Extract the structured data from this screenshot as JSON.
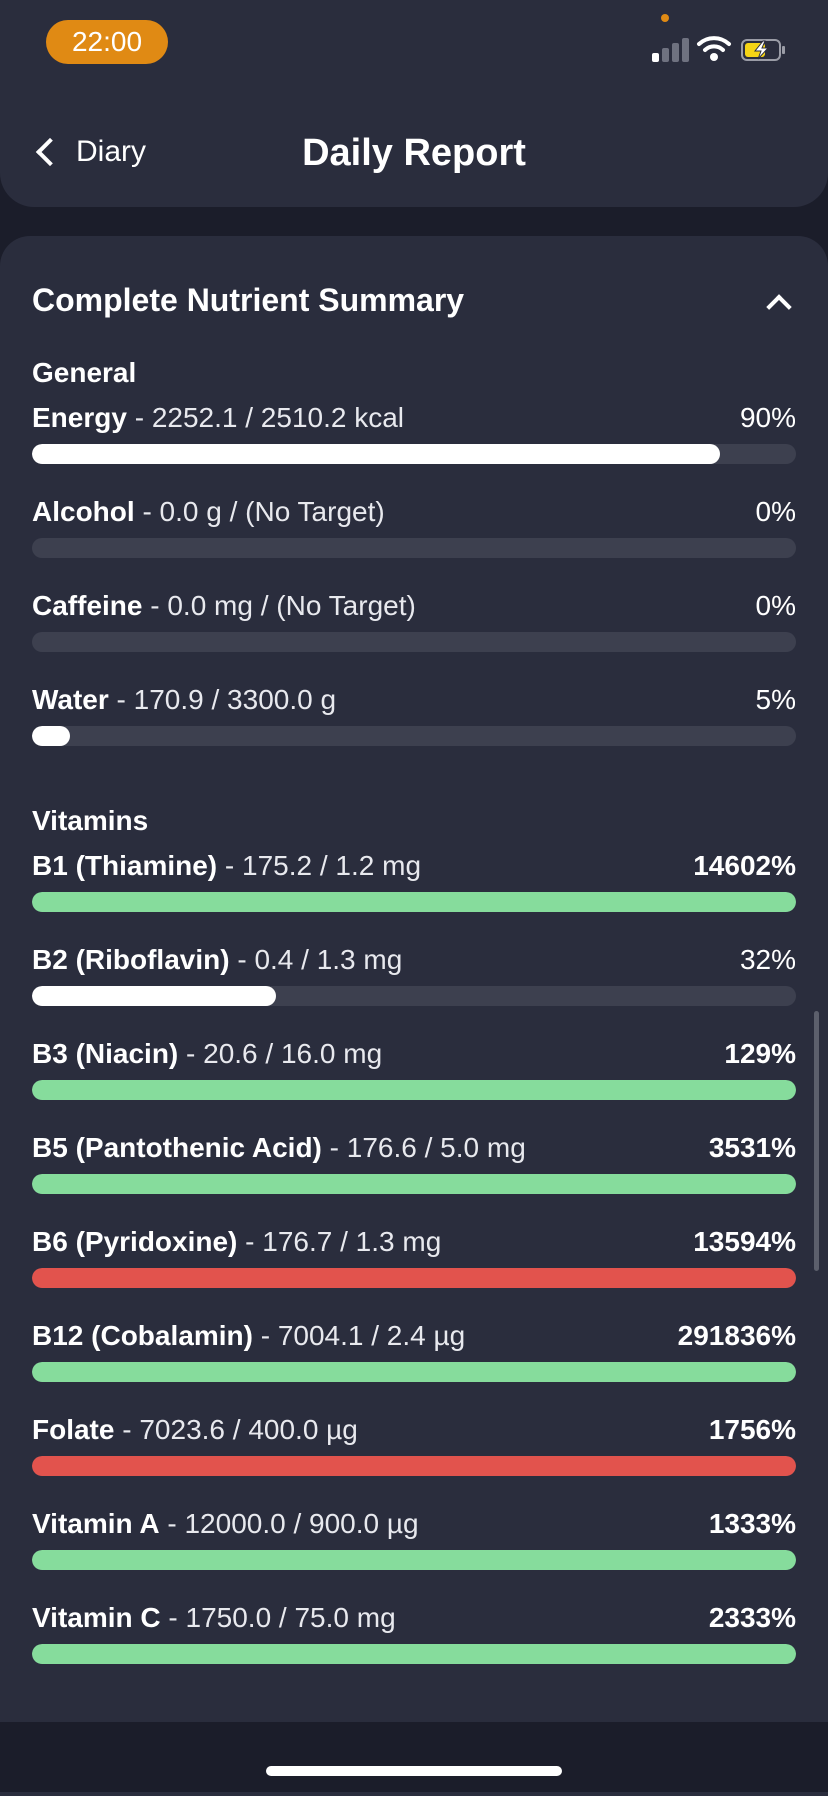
{
  "status_bar": {
    "time": "22:00"
  },
  "nav": {
    "back_label": "Diary",
    "title": "Daily Report"
  },
  "card": {
    "title": "Complete Nutrient Summary"
  },
  "colors": {
    "accent_orange": "#e08a14",
    "green": "#86dc9c",
    "red": "#e2534d",
    "white_fill": "#ffffff",
    "track": "#3d404f"
  },
  "sections": [
    {
      "title": "General",
      "items": [
        {
          "name": "Energy",
          "detail": " - 2252.1 / 2510.2 kcal",
          "percent": "90%",
          "progress": 0.9,
          "color": "white"
        },
        {
          "name": "Alcohol",
          "detail": " - 0.0 g / (No Target)",
          "percent": "0%",
          "progress": 0,
          "color": "white"
        },
        {
          "name": "Caffeine",
          "detail": " - 0.0 mg / (No Target)",
          "percent": "0%",
          "progress": 0,
          "color": "white"
        },
        {
          "name": "Water",
          "detail": " - 170.9 / 3300.0 g",
          "percent": "5%",
          "progress": 0.05,
          "color": "white"
        }
      ]
    },
    {
      "title": "Vitamins",
      "items": [
        {
          "name": "B1 (Thiamine)",
          "detail": " - 175.2 / 1.2 mg",
          "percent": "14602%",
          "progress": 1,
          "color": "green"
        },
        {
          "name": "B2 (Riboflavin)",
          "detail": " - 0.4 / 1.3 mg",
          "percent": "32%",
          "progress": 0.32,
          "color": "white"
        },
        {
          "name": "B3 (Niacin)",
          "detail": " - 20.6 / 16.0 mg",
          "percent": "129%",
          "progress": 1,
          "color": "green"
        },
        {
          "name": "B5 (Pantothenic Acid)",
          "detail": " - 176.6 / 5.0 mg",
          "percent": "3531%",
          "progress": 1,
          "color": "green"
        },
        {
          "name": "B6 (Pyridoxine)",
          "detail": " - 176.7 / 1.3 mg",
          "percent": "13594%",
          "progress": 1,
          "color": "red"
        },
        {
          "name": "B12 (Cobalamin)",
          "detail": " - 7004.1 / 2.4 µg",
          "percent": "291836%",
          "progress": 1,
          "color": "green"
        },
        {
          "name": "Folate",
          "detail": " - 7023.6 / 400.0 µg",
          "percent": "1756%",
          "progress": 1,
          "color": "red"
        },
        {
          "name": "Vitamin A",
          "detail": " - 12000.0 / 900.0 µg",
          "percent": "1333%",
          "progress": 1,
          "color": "green"
        },
        {
          "name": "Vitamin C",
          "detail": " - 1750.0 / 75.0 mg",
          "percent": "2333%",
          "progress": 1,
          "color": "green"
        }
      ]
    }
  ]
}
